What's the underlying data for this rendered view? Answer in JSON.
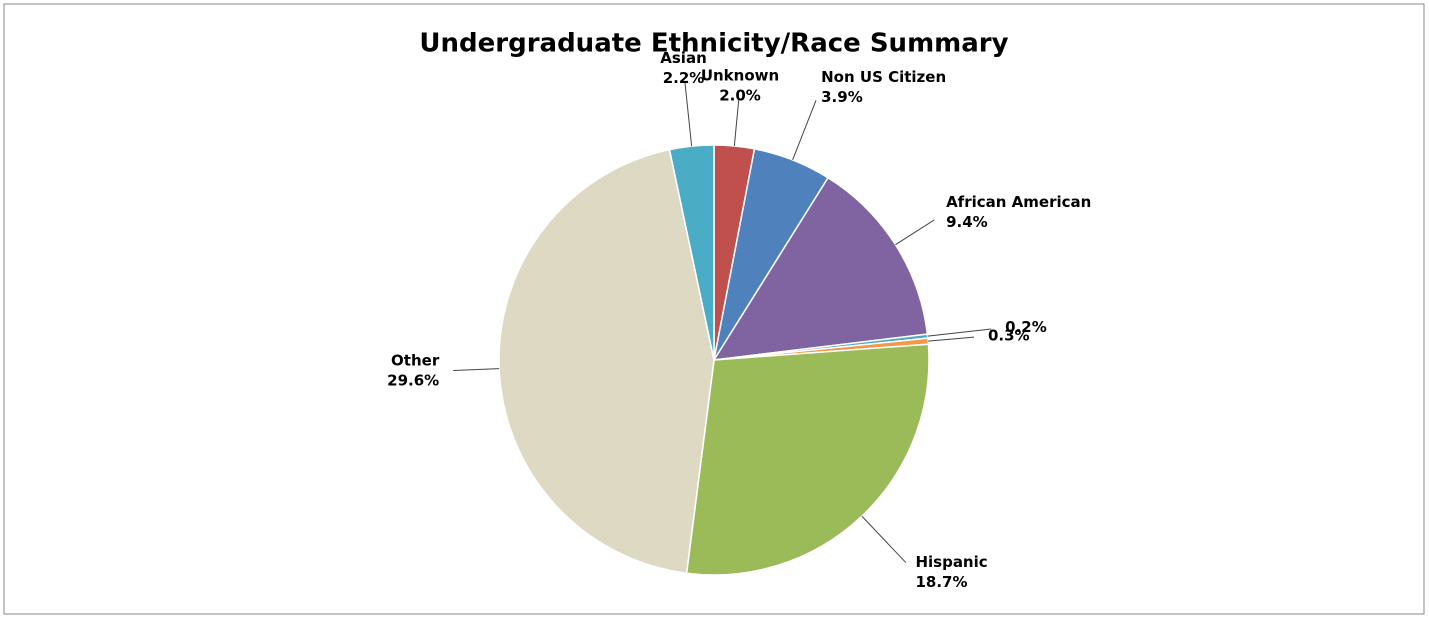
{
  "chart_data": {
    "type": "pie",
    "title": "Undergraduate Ethnicity/Race Summary",
    "categories": [
      "Unknown",
      "Non US Citizen",
      "African American",
      null,
      null,
      "Hispanic",
      "Other",
      "Asian"
    ],
    "values": [
      2.0,
      3.9,
      9.4,
      0.2,
      0.3,
      18.7,
      29.6,
      2.2
    ],
    "value_labels": [
      "2.0%",
      "3.9%",
      "9.4%",
      "0.2%",
      "0.3%",
      "18.7%",
      "29.6%",
      "2.2%"
    ],
    "colors": [
      "#c0504d",
      "#4f81bd",
      "#8064a2",
      "#4bacc6",
      "#f79646",
      "#9bbb59",
      "#ddd9c3",
      "#4bacc6"
    ]
  }
}
